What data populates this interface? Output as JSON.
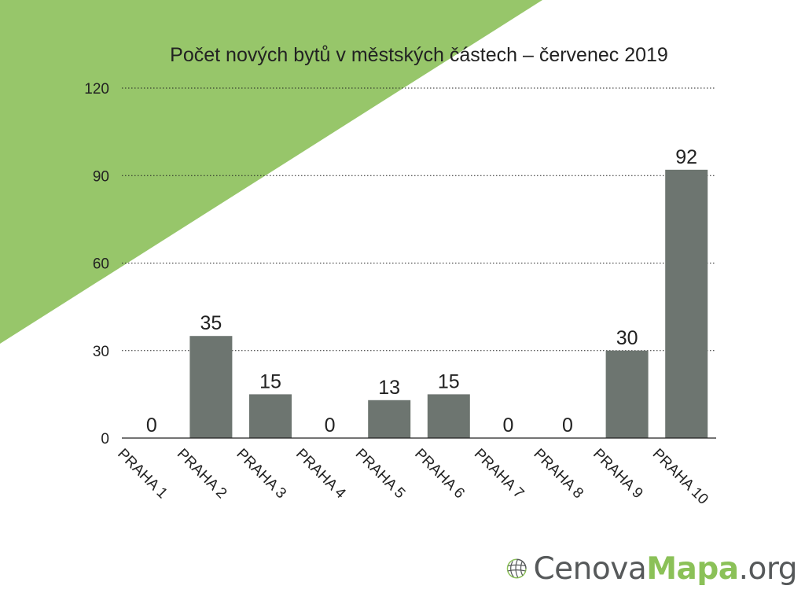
{
  "colors": {
    "accent_green": "#97c66a",
    "bar": "#6d7570",
    "grid": "#222222",
    "logo_gray": "#56595a",
    "logo_green": "#8bc158"
  },
  "chart_data": {
    "type": "bar",
    "title": "Počet nových bytů v městských částech – červenec 2019",
    "categories": [
      "PRAHA 1",
      "PRAHA 2",
      "PRAHA 3",
      "PRAHA 4",
      "PRAHA 5",
      "PRAHA 6",
      "PRAHA 7",
      "PRAHA 8",
      "PRAHA 9",
      "PRAHA 10"
    ],
    "values": [
      0,
      35,
      15,
      0,
      13,
      15,
      0,
      0,
      30,
      92
    ],
    "ylim": [
      0,
      120
    ],
    "yticks": [
      0,
      30,
      60,
      90,
      120
    ],
    "grid": true,
    "data_labels": true,
    "legend": "none"
  },
  "logo": {
    "icon": "globe-grid-icon",
    "part1": "Cenova",
    "part2": "Mapa",
    "part3": ".org"
  }
}
